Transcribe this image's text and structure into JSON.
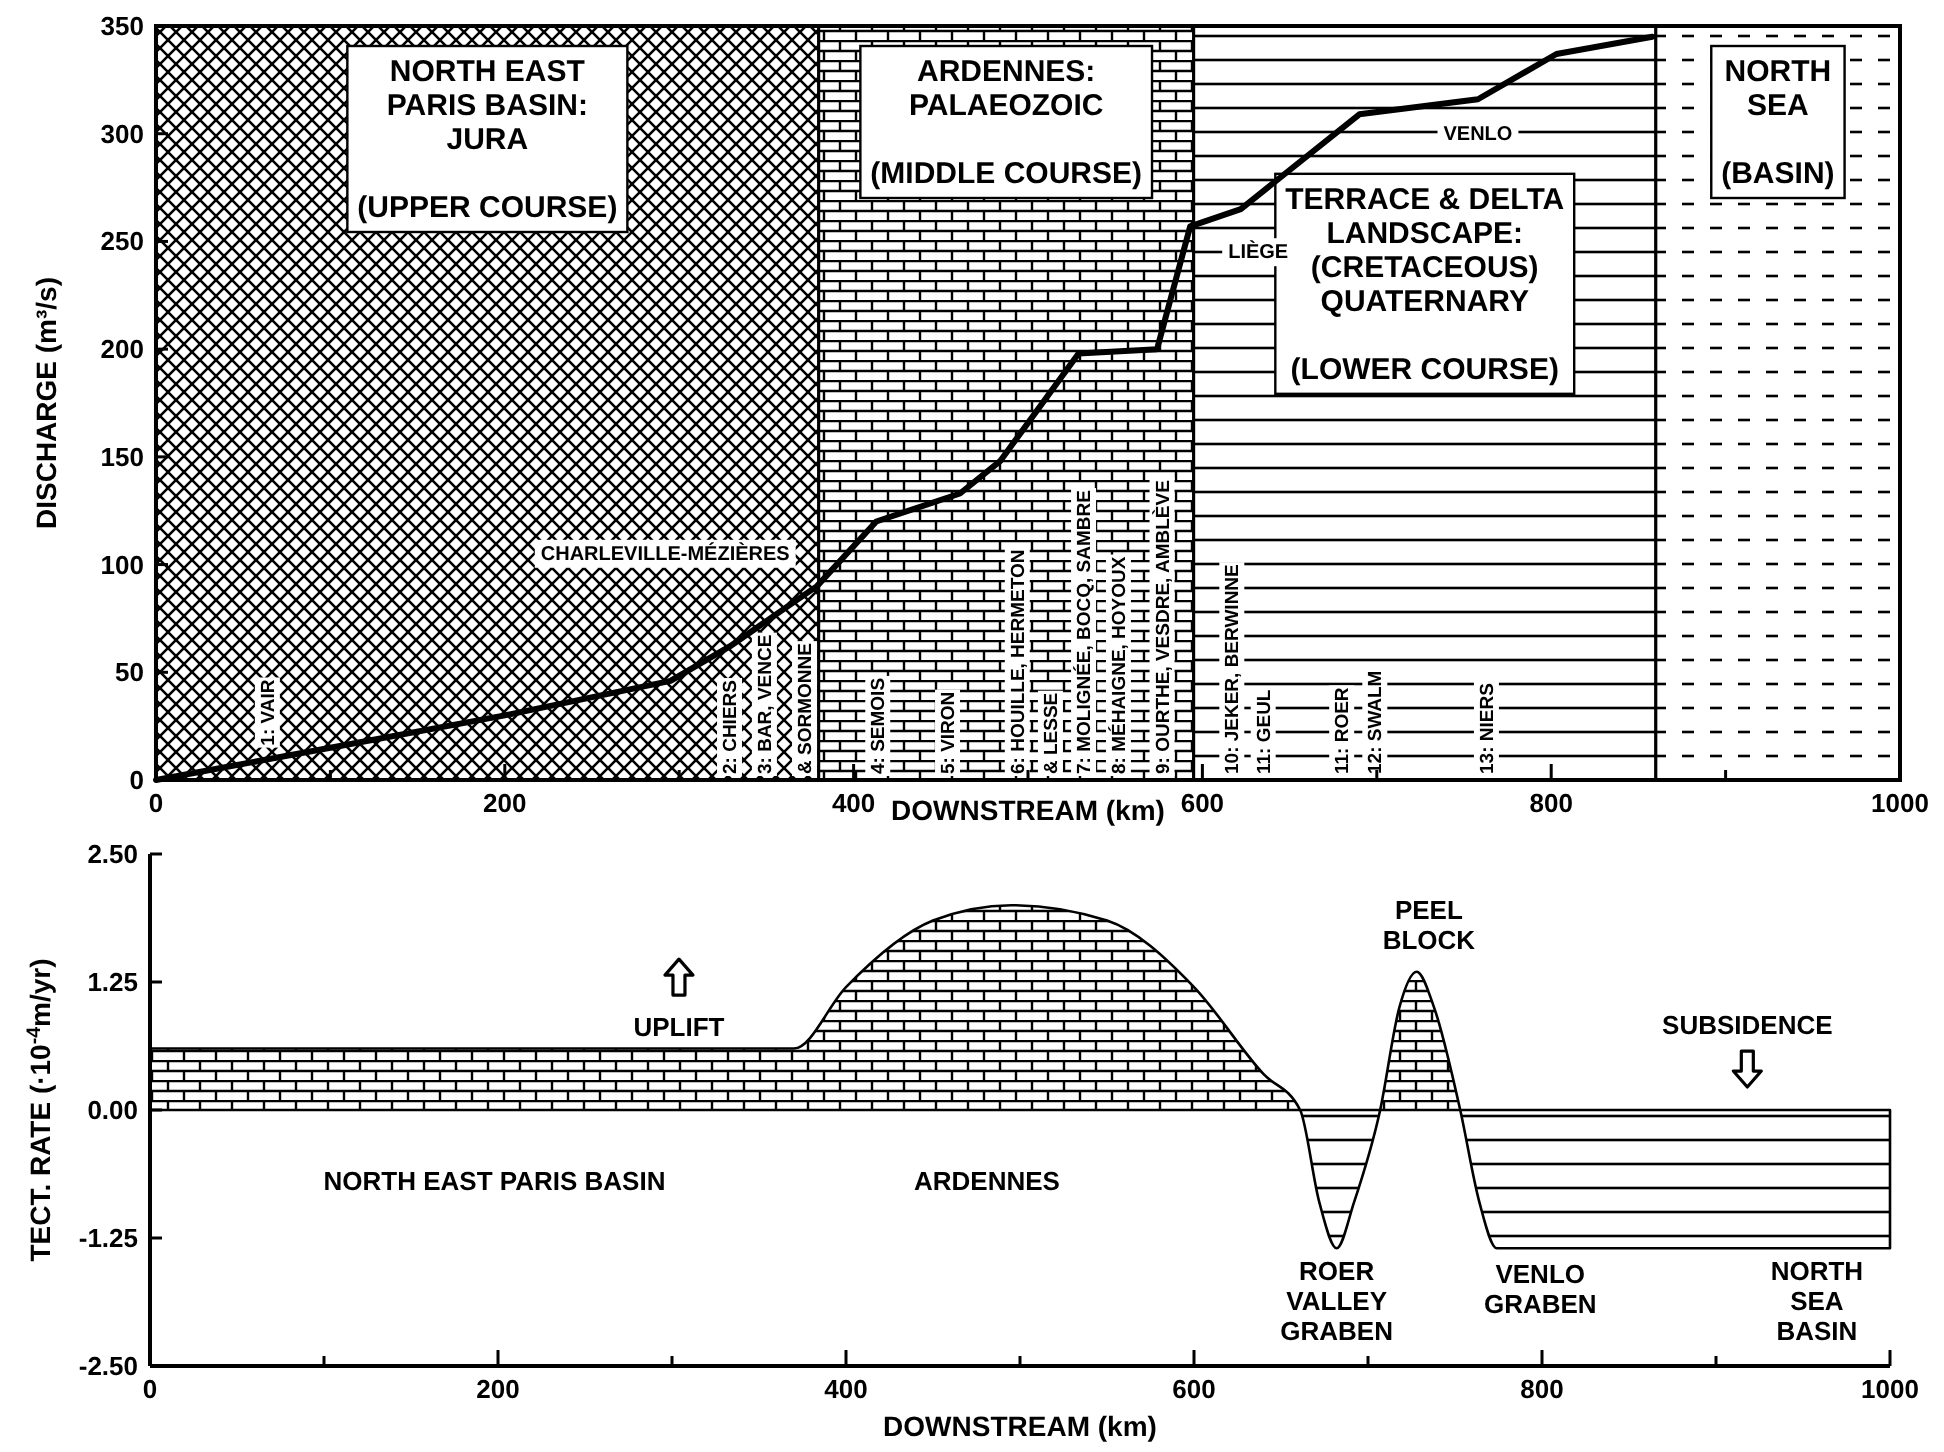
{
  "chart_data": [
    {
      "type": "line",
      "xlabel": "DOWNSTREAM (km)",
      "ylabel": "DISCHARGE (m³/s)",
      "xlim": [
        0,
        1000
      ],
      "ylim": [
        0,
        350
      ],
      "xticks": [
        0,
        {
          "value": 100,
          "label": null
        },
        200,
        {
          "value": 300,
          "label": null
        },
        400,
        {
          "value": 500,
          "label": null
        },
        600,
        {
          "value": 700,
          "label": null
        },
        800,
        {
          "value": 900,
          "label": null
        },
        1000
      ],
      "yticks": [
        0,
        50,
        100,
        150,
        200,
        250,
        300,
        350
      ],
      "x": [
        0,
        100,
        200,
        295,
        329,
        379,
        413,
        461,
        484,
        529,
        574,
        593,
        622,
        690,
        758,
        803,
        858
      ],
      "series": [
        {
          "color": "#000000",
          "values": [
            0,
            15,
            30,
            46,
            62,
            90,
            120,
            133,
            148,
            198,
            200,
            257,
            265,
            309,
            316,
            337,
            345
          ]
        }
      ],
      "bands": [
        {
          "axis": "x",
          "from": 0,
          "to": 380,
          "label": "NORTH EAST\nPARIS BASIN:\nJURA\n\n(UPPER COURSE)",
          "color": "#000000"
        },
        {
          "axis": "x",
          "from": 380,
          "to": 595,
          "label": "ARDENNES:\nPALAEOZOIC\n\n(MIDDLE COURSE)",
          "color": "#000000"
        },
        {
          "axis": "x",
          "from": 595,
          "to": 860,
          "label": "TERRACE & DELTA\nLANDSCAPE:\n(CRETACEOUS)\nQUATERNARY\n\n(LOWER COURSE)",
          "color": "#000000"
        },
        {
          "axis": "x",
          "from": 860,
          "to": 1000,
          "label": "NORTH\nSEA\n\n(BASIN)",
          "color": "#000000"
        }
      ],
      "annotations": [
        "CHARLEVILLE-MÉZIÈRES",
        "LIÈGE",
        "VENLO",
        {
          "text": "1: VAIR",
          "x": 63,
          "y": 0
        },
        {
          "text": "2: CHIERS",
          "x": 328,
          "y": 0
        },
        {
          "text": "3: BAR, VENCE",
          "x": 348,
          "y": 0
        },
        {
          "text": "& SORMONNE",
          "x": 371,
          "y": 0
        },
        {
          "text": "4: SEMOIS",
          "x": 413,
          "y": 0
        },
        {
          "text": "5: VIRON",
          "x": 453,
          "y": 0
        },
        {
          "text": "6: HOUILLE, HERMETON",
          "x": 493,
          "y": 0
        },
        {
          "text": "& LESSE",
          "x": 512,
          "y": 0
        },
        {
          "text": "7: MOLIGNÉE, BOCQ, SAMBRE",
          "x": 531,
          "y": 0
        },
        {
          "text": "8: MÉHAIGNE, HOYOUX",
          "x": 551,
          "y": 0
        },
        {
          "text": "9: OURTHE, VESDRE, AMBLÈVE",
          "x": 576,
          "y": 0
        },
        {
          "text": "10: JEKER, BERWINNE",
          "x": 616,
          "y": 0
        },
        {
          "text": "11: GEUL",
          "x": 634,
          "y": 0
        },
        {
          "text": "11: ROER",
          "x": 679,
          "y": 0
        },
        {
          "text": "12: SWALM",
          "x": 698,
          "y": 0
        },
        {
          "text": "13: NIERS",
          "x": 762,
          "y": 0
        }
      ]
    },
    {
      "type": "area",
      "xlabel": "DOWNSTREAM (km)",
      "ylabel": "TECT. RATE (·10$^{-4}$m/yr)",
      "xlim": [
        0,
        1000
      ],
      "ylim": [
        -2.5,
        2.5
      ],
      "xticks": [
        0,
        {
          "value": 100,
          "label": null
        },
        200,
        {
          "value": 300,
          "label": null
        },
        400,
        {
          "value": 500,
          "label": null
        },
        600,
        {
          "value": 700,
          "label": null
        },
        800,
        {
          "value": 900,
          "label": null
        },
        1000
      ],
      "yticks": [
        {
          "value": -2.5,
          "label": "-2.50"
        },
        {
          "value": -1.25,
          "label": "-1.25"
        },
        {
          "value": 0,
          "label": "0.00"
        },
        {
          "value": 1.25,
          "label": "1.25"
        },
        {
          "value": 2.5,
          "label": "2.50"
        }
      ],
      "x": [
        0,
        370,
        400,
        450,
        495,
        550,
        600,
        640,
        661,
        672,
        682,
        692,
        707,
        718,
        728,
        738,
        753,
        764,
        774,
        1000
      ],
      "series": [
        {
          "color": "#000000",
          "values": [
            0.6,
            0.6,
            1.2,
            1.85,
            2.0,
            1.85,
            1.2,
            0.35,
            0,
            -0.9,
            -1.35,
            -0.9,
            0,
            1.0,
            1.35,
            1.0,
            0,
            -0.9,
            -1.35,
            -1.35
          ]
        }
      ],
      "annotations": [
        "UPLIFT",
        "SUBSIDENCE",
        "NORTH EAST PARIS BASIN",
        "ARDENNES",
        "PEEL\nBLOCK",
        "ROER\nVALLEY\nGRABEN",
        "VENLO\nGRABEN",
        "NORTH\nSEA\nBASIN"
      ]
    }
  ]
}
